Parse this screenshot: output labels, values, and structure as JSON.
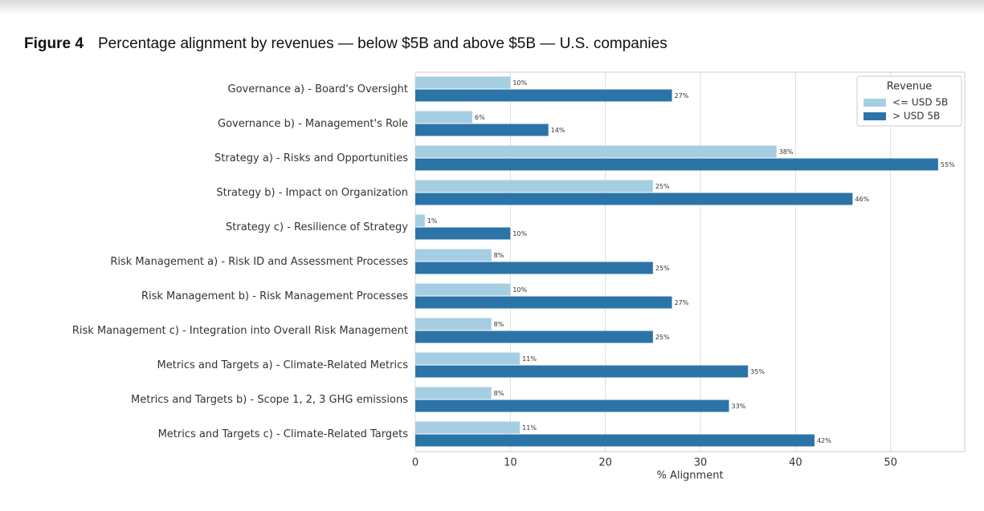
{
  "chart_data": {
    "type": "barh",
    "figure_label": "Figure 4",
    "title": "Percentage alignment by revenues — below $5B and above $5B — U.S. companies",
    "xlabel": "% Alignment",
    "categories": [
      "Governance a) - Board's Oversight",
      "Governance b) - Management's Role",
      "Strategy a) - Risks and Opportunities",
      "Strategy b) - Impact on Organization",
      "Strategy c) - Resilience of Strategy",
      "Risk Management a) - Risk ID and Assessment Processes",
      "Risk Management b) - Risk Management Processes",
      "Risk Management c) - Integration into Overall Risk Management",
      "Metrics and Targets a) - Climate-Related Metrics",
      "Metrics and Targets b) - Scope 1, 2, 3 GHG emissions",
      "Metrics and Targets c) - Climate-Related Targets"
    ],
    "series": [
      {
        "name": "<= USD 5B",
        "color": "#a6cee3",
        "values": [
          10,
          6,
          38,
          25,
          1,
          8,
          10,
          8,
          11,
          8,
          11
        ],
        "value_labels": [
          "10%",
          "6%",
          "38%",
          "25%",
          "1%",
          "8%",
          "10%",
          "8%",
          "11%",
          "8%",
          "11%"
        ]
      },
      {
        "name": "> USD 5B",
        "color": "#2b74a8",
        "values": [
          27,
          14,
          55,
          46,
          10,
          25,
          27,
          25,
          35,
          33,
          42
        ],
        "value_labels": [
          "27%",
          "14%",
          "55%",
          "46%",
          "10%",
          "25%",
          "27%",
          "25%",
          "35%",
          "33%",
          "42%"
        ]
      }
    ],
    "legend_title": "Revenue",
    "legend": "upper right",
    "xlim": [
      0,
      57.8
    ],
    "xticks": [
      0,
      10,
      20,
      30,
      40,
      50
    ],
    "grid": true
  }
}
